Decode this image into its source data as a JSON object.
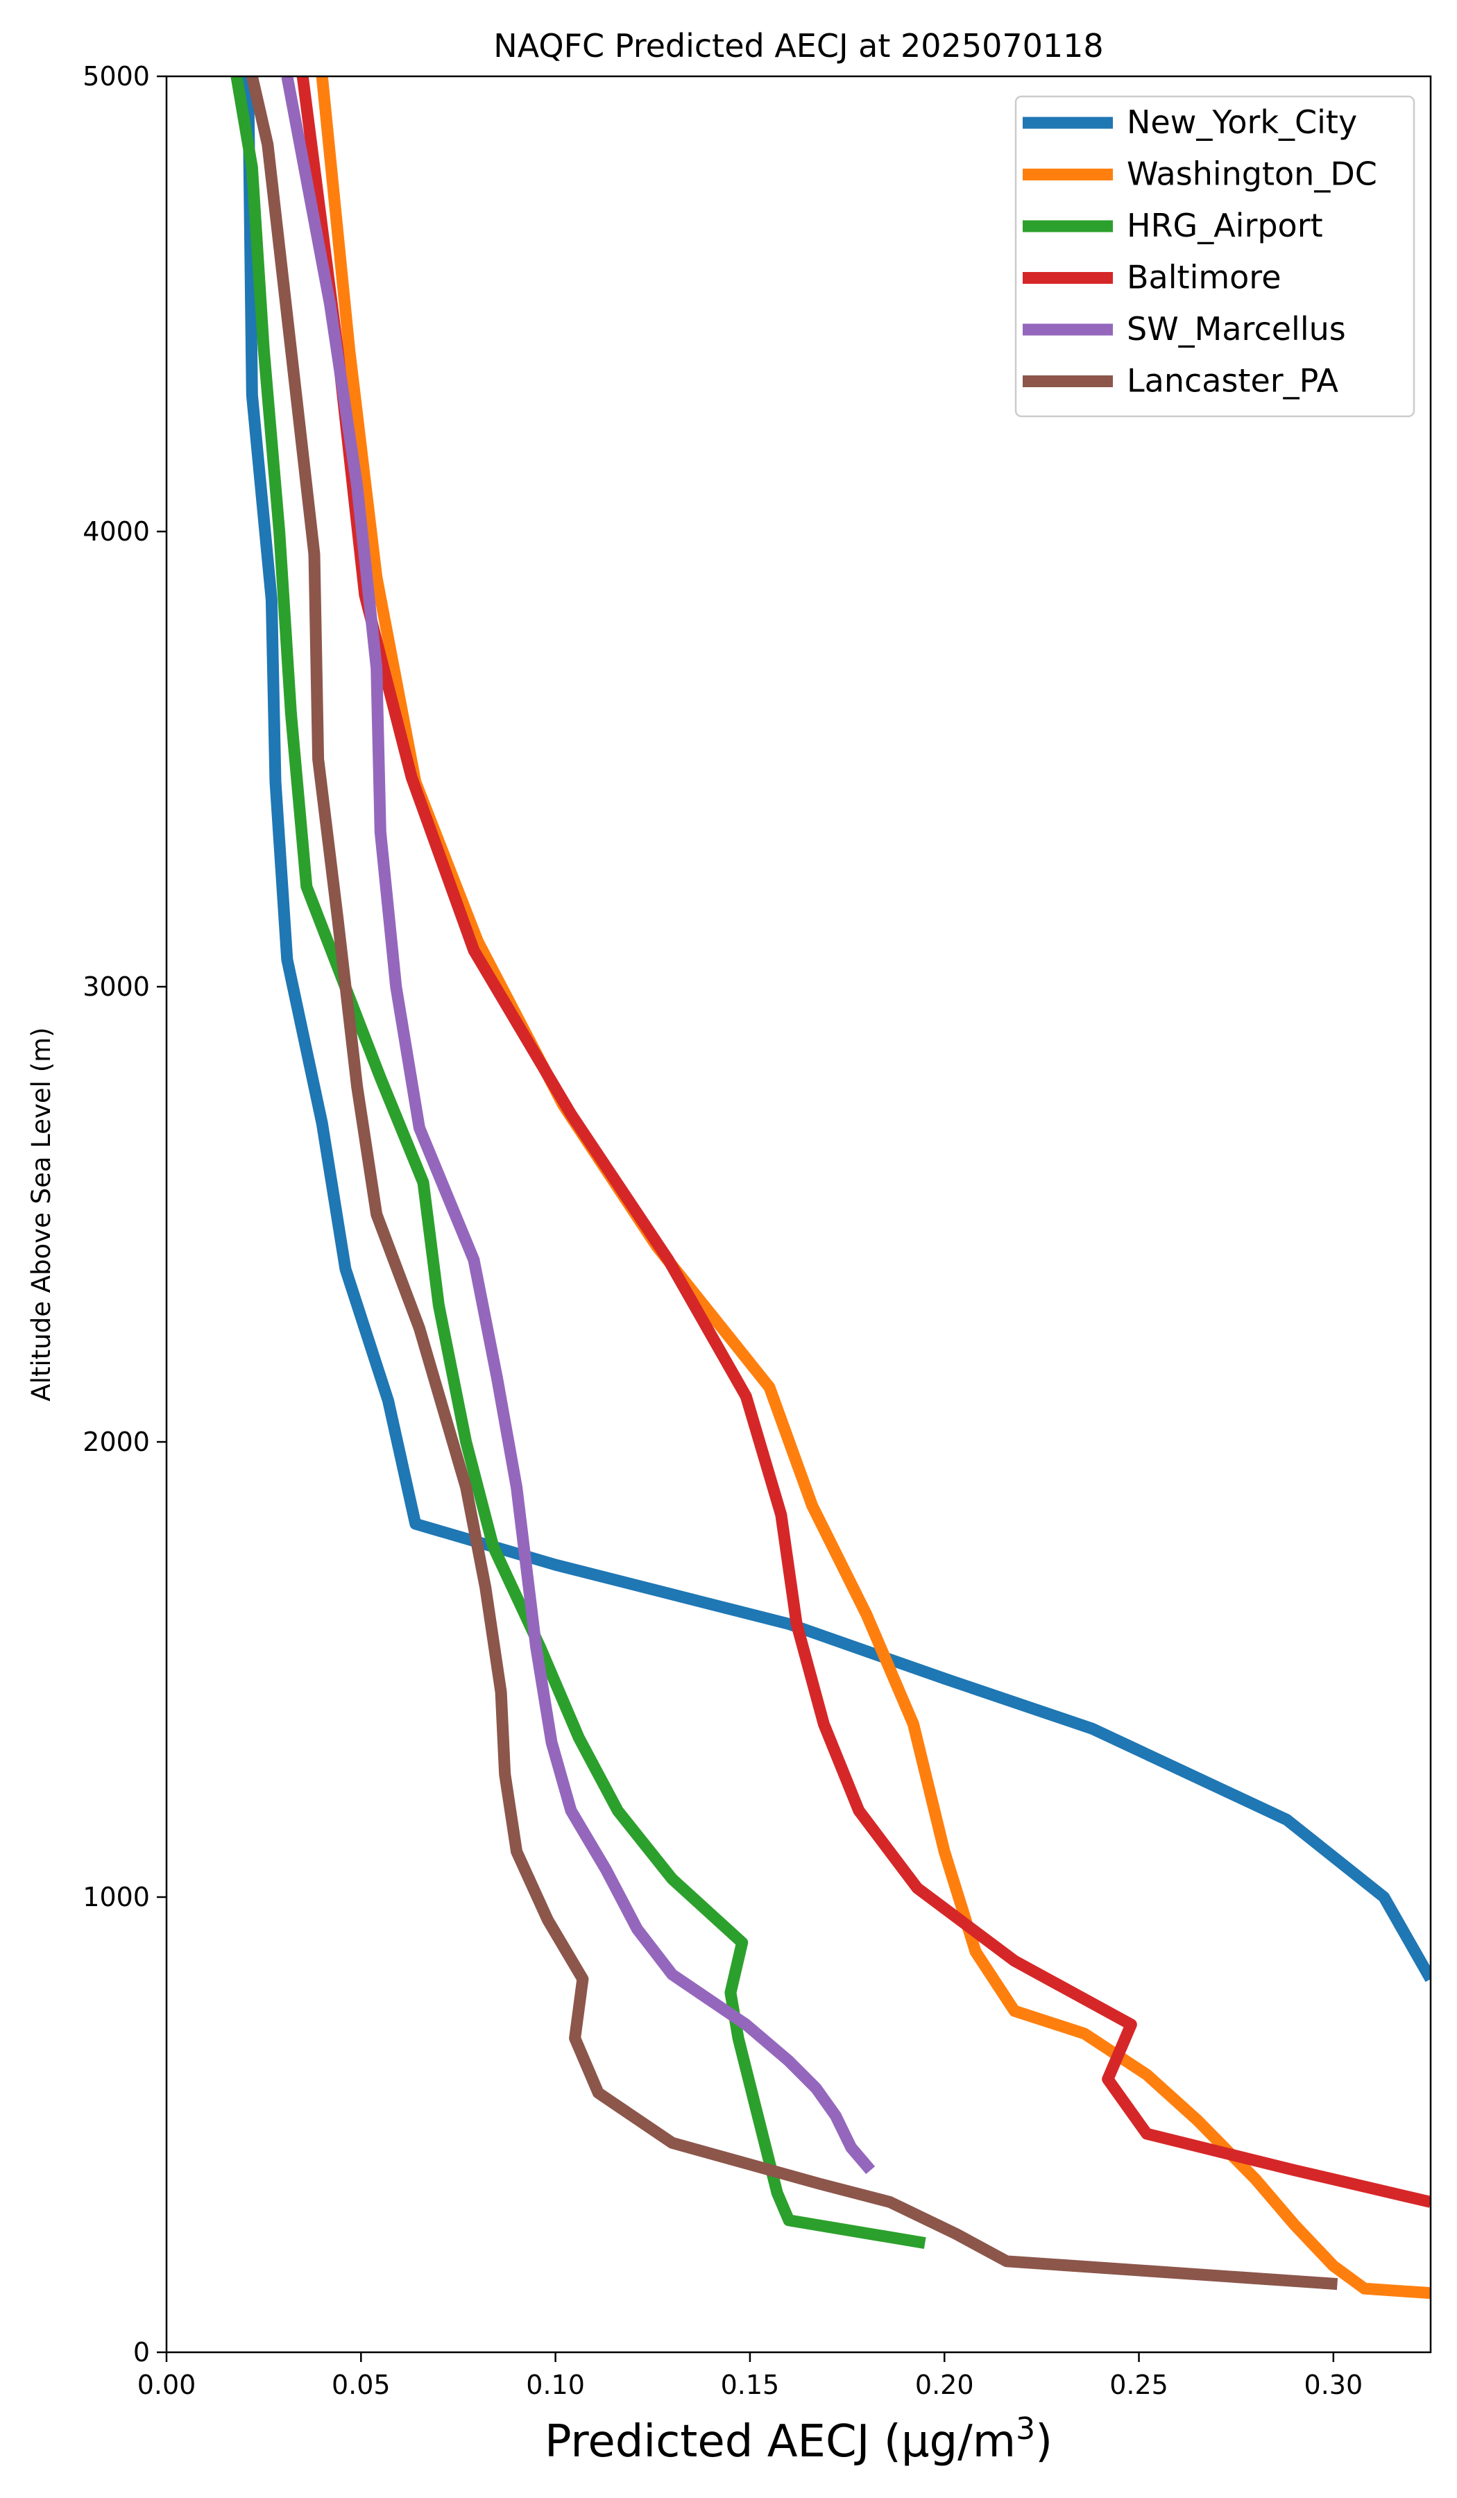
{
  "chart_data": {
    "type": "line",
    "title": "NAQFC Predicted AECJ at 2025070118",
    "xlabel": "Predicted AECJ (μg/m³)",
    "ylabel": "Altitude Above Sea Level (m)",
    "xlim": [
      0.0,
      0.325
    ],
    "ylim": [
      0,
      5000
    ],
    "xticks": [
      "0.00",
      "0.05",
      "0.10",
      "0.15",
      "0.20",
      "0.25",
      "0.30"
    ],
    "yticks": [
      "0",
      "1000",
      "2000",
      "3000",
      "4000",
      "5000"
    ],
    "legend_position": "top-right",
    "grid": false,
    "series": [
      {
        "name": "New_York_City",
        "color": "#1f77b4",
        "points": [
          [
            0.325,
            820
          ],
          [
            0.313,
            1000
          ],
          [
            0.288,
            1170
          ],
          [
            0.238,
            1370
          ],
          [
            0.2,
            1480
          ],
          [
            0.16,
            1600
          ],
          [
            0.1,
            1730
          ],
          [
            0.064,
            1820
          ],
          [
            0.057,
            2090
          ],
          [
            0.046,
            2380
          ],
          [
            0.04,
            2700
          ],
          [
            0.031,
            3060
          ],
          [
            0.028,
            3450
          ],
          [
            0.027,
            3850
          ],
          [
            0.022,
            4300
          ],
          [
            0.021,
            5000
          ]
        ]
      },
      {
        "name": "Washington_DC",
        "color": "#ff7f0e",
        "points": [
          [
            0.325,
            130
          ],
          [
            0.308,
            140
          ],
          [
            0.3,
            190
          ],
          [
            0.29,
            280
          ],
          [
            0.28,
            380
          ],
          [
            0.265,
            510
          ],
          [
            0.252,
            610
          ],
          [
            0.236,
            700
          ],
          [
            0.218,
            750
          ],
          [
            0.208,
            880
          ],
          [
            0.2,
            1100
          ],
          [
            0.192,
            1380
          ],
          [
            0.18,
            1620
          ],
          [
            0.166,
            1860
          ],
          [
            0.155,
            2120
          ],
          [
            0.126,
            2430
          ],
          [
            0.102,
            2740
          ],
          [
            0.08,
            3100
          ],
          [
            0.064,
            3450
          ],
          [
            0.054,
            3900
          ],
          [
            0.047,
            4400
          ],
          [
            0.04,
            5000
          ]
        ]
      },
      {
        "name": "HRG_Airport",
        "color": "#2ca02c",
        "points": [
          [
            0.195,
            240
          ],
          [
            0.16,
            290
          ],
          [
            0.157,
            350
          ],
          [
            0.152,
            520
          ],
          [
            0.147,
            690
          ],
          [
            0.145,
            790
          ],
          [
            0.148,
            900
          ],
          [
            0.13,
            1040
          ],
          [
            0.116,
            1190
          ],
          [
            0.106,
            1350
          ],
          [
            0.096,
            1550
          ],
          [
            0.084,
            1770
          ],
          [
            0.077,
            2000
          ],
          [
            0.07,
            2300
          ],
          [
            0.066,
            2570
          ],
          [
            0.055,
            2800
          ],
          [
            0.036,
            3220
          ],
          [
            0.032,
            3600
          ],
          [
            0.029,
            4000
          ],
          [
            0.025,
            4400
          ],
          [
            0.022,
            4800
          ],
          [
            0.018,
            5000
          ]
        ]
      },
      {
        "name": "Baltimore",
        "color": "#d62728",
        "points": [
          [
            0.325,
            330
          ],
          [
            0.29,
            400
          ],
          [
            0.252,
            480
          ],
          [
            0.242,
            600
          ],
          [
            0.248,
            720
          ],
          [
            0.218,
            860
          ],
          [
            0.193,
            1020
          ],
          [
            0.178,
            1190
          ],
          [
            0.169,
            1380
          ],
          [
            0.162,
            1600
          ],
          [
            0.158,
            1840
          ],
          [
            0.149,
            2100
          ],
          [
            0.129,
            2400
          ],
          [
            0.104,
            2720
          ],
          [
            0.079,
            3080
          ],
          [
            0.063,
            3460
          ],
          [
            0.051,
            3860
          ],
          [
            0.044,
            4400
          ],
          [
            0.035,
            5000
          ]
        ]
      },
      {
        "name": "SW_Marcellus",
        "color": "#9467bd",
        "points": [
          [
            0.181,
            400
          ],
          [
            0.176,
            450
          ],
          [
            0.172,
            520
          ],
          [
            0.167,
            580
          ],
          [
            0.16,
            640
          ],
          [
            0.149,
            720
          ],
          [
            0.13,
            830
          ],
          [
            0.121,
            930
          ],
          [
            0.113,
            1060
          ],
          [
            0.104,
            1190
          ],
          [
            0.099,
            1340
          ],
          [
            0.095,
            1550
          ],
          [
            0.09,
            1900
          ],
          [
            0.085,
            2140
          ],
          [
            0.079,
            2400
          ],
          [
            0.065,
            2690
          ],
          [
            0.059,
            3000
          ],
          [
            0.055,
            3340
          ],
          [
            0.054,
            3700
          ],
          [
            0.049,
            4100
          ],
          [
            0.042,
            4500
          ],
          [
            0.031,
            5000
          ]
        ]
      },
      {
        "name": "Lancaster_PA",
        "color": "#8c564b",
        "points": [
          [
            0.301,
            150
          ],
          [
            0.216,
            200
          ],
          [
            0.203,
            260
          ],
          [
            0.186,
            330
          ],
          [
            0.168,
            370
          ],
          [
            0.13,
            460
          ],
          [
            0.111,
            570
          ],
          [
            0.105,
            690
          ],
          [
            0.107,
            820
          ],
          [
            0.098,
            950
          ],
          [
            0.09,
            1100
          ],
          [
            0.087,
            1270
          ],
          [
            0.086,
            1450
          ],
          [
            0.082,
            1680
          ],
          [
            0.077,
            1900
          ],
          [
            0.065,
            2250
          ],
          [
            0.054,
            2500
          ],
          [
            0.049,
            2780
          ],
          [
            0.044,
            3150
          ],
          [
            0.039,
            3500
          ],
          [
            0.038,
            3950
          ],
          [
            0.032,
            4400
          ],
          [
            0.026,
            4850
          ],
          [
            0.022,
            5000
          ]
        ]
      }
    ]
  }
}
